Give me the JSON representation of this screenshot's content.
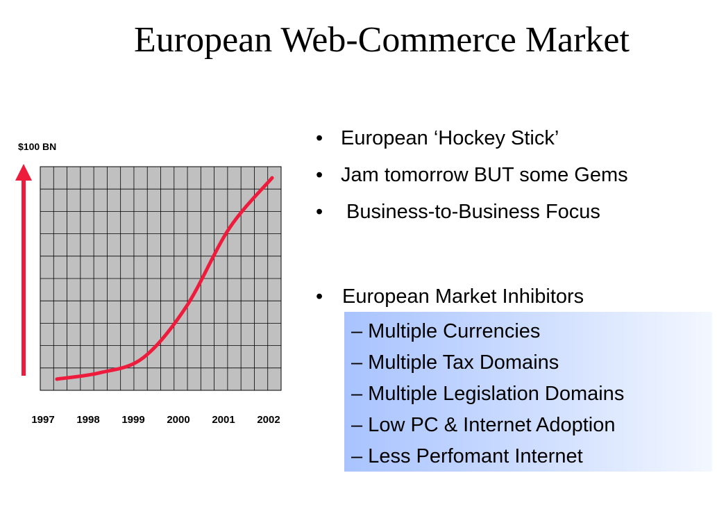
{
  "slide": {
    "title": "European Web-Commerce Market"
  },
  "chart_data": {
    "type": "line",
    "title": "",
    "xlabel": "",
    "ylabel": "$100 BN",
    "x": [
      "1997",
      "1998",
      "1999",
      "2000",
      "2001",
      "2002"
    ],
    "series": [
      {
        "values": [
          3,
          6,
          13,
          37,
          74,
          98
        ]
      }
    ],
    "xlim": [
      "1997",
      "2002"
    ],
    "ylim": [
      0,
      100
    ],
    "grid": true,
    "legend": "none",
    "colors": {
      "line": "#ee1c3c",
      "arrow": "#ee1c3c",
      "plot_background": "#c0c0c0",
      "grid": "#000000"
    }
  },
  "bullets": [
    {
      "marker": "•",
      "text": "European ‘Hockey Stick’"
    },
    {
      "marker": "•",
      "text": "Jam tomorrow BUT some Gems"
    },
    {
      "marker": "•",
      "text": " Business-to-Business Focus"
    }
  ],
  "inhibitors": {
    "marker": "•",
    "heading": "European Market Inhibitors",
    "items": [
      "– Multiple Currencies",
      "– Multiple Tax Domains",
      "– Multiple Legislation Domains",
      "– Low  PC & Internet Adoption",
      "– Less Perfomant Internet"
    ],
    "box_gradient": [
      "#a8c3ff",
      "#f3f7ff"
    ]
  }
}
